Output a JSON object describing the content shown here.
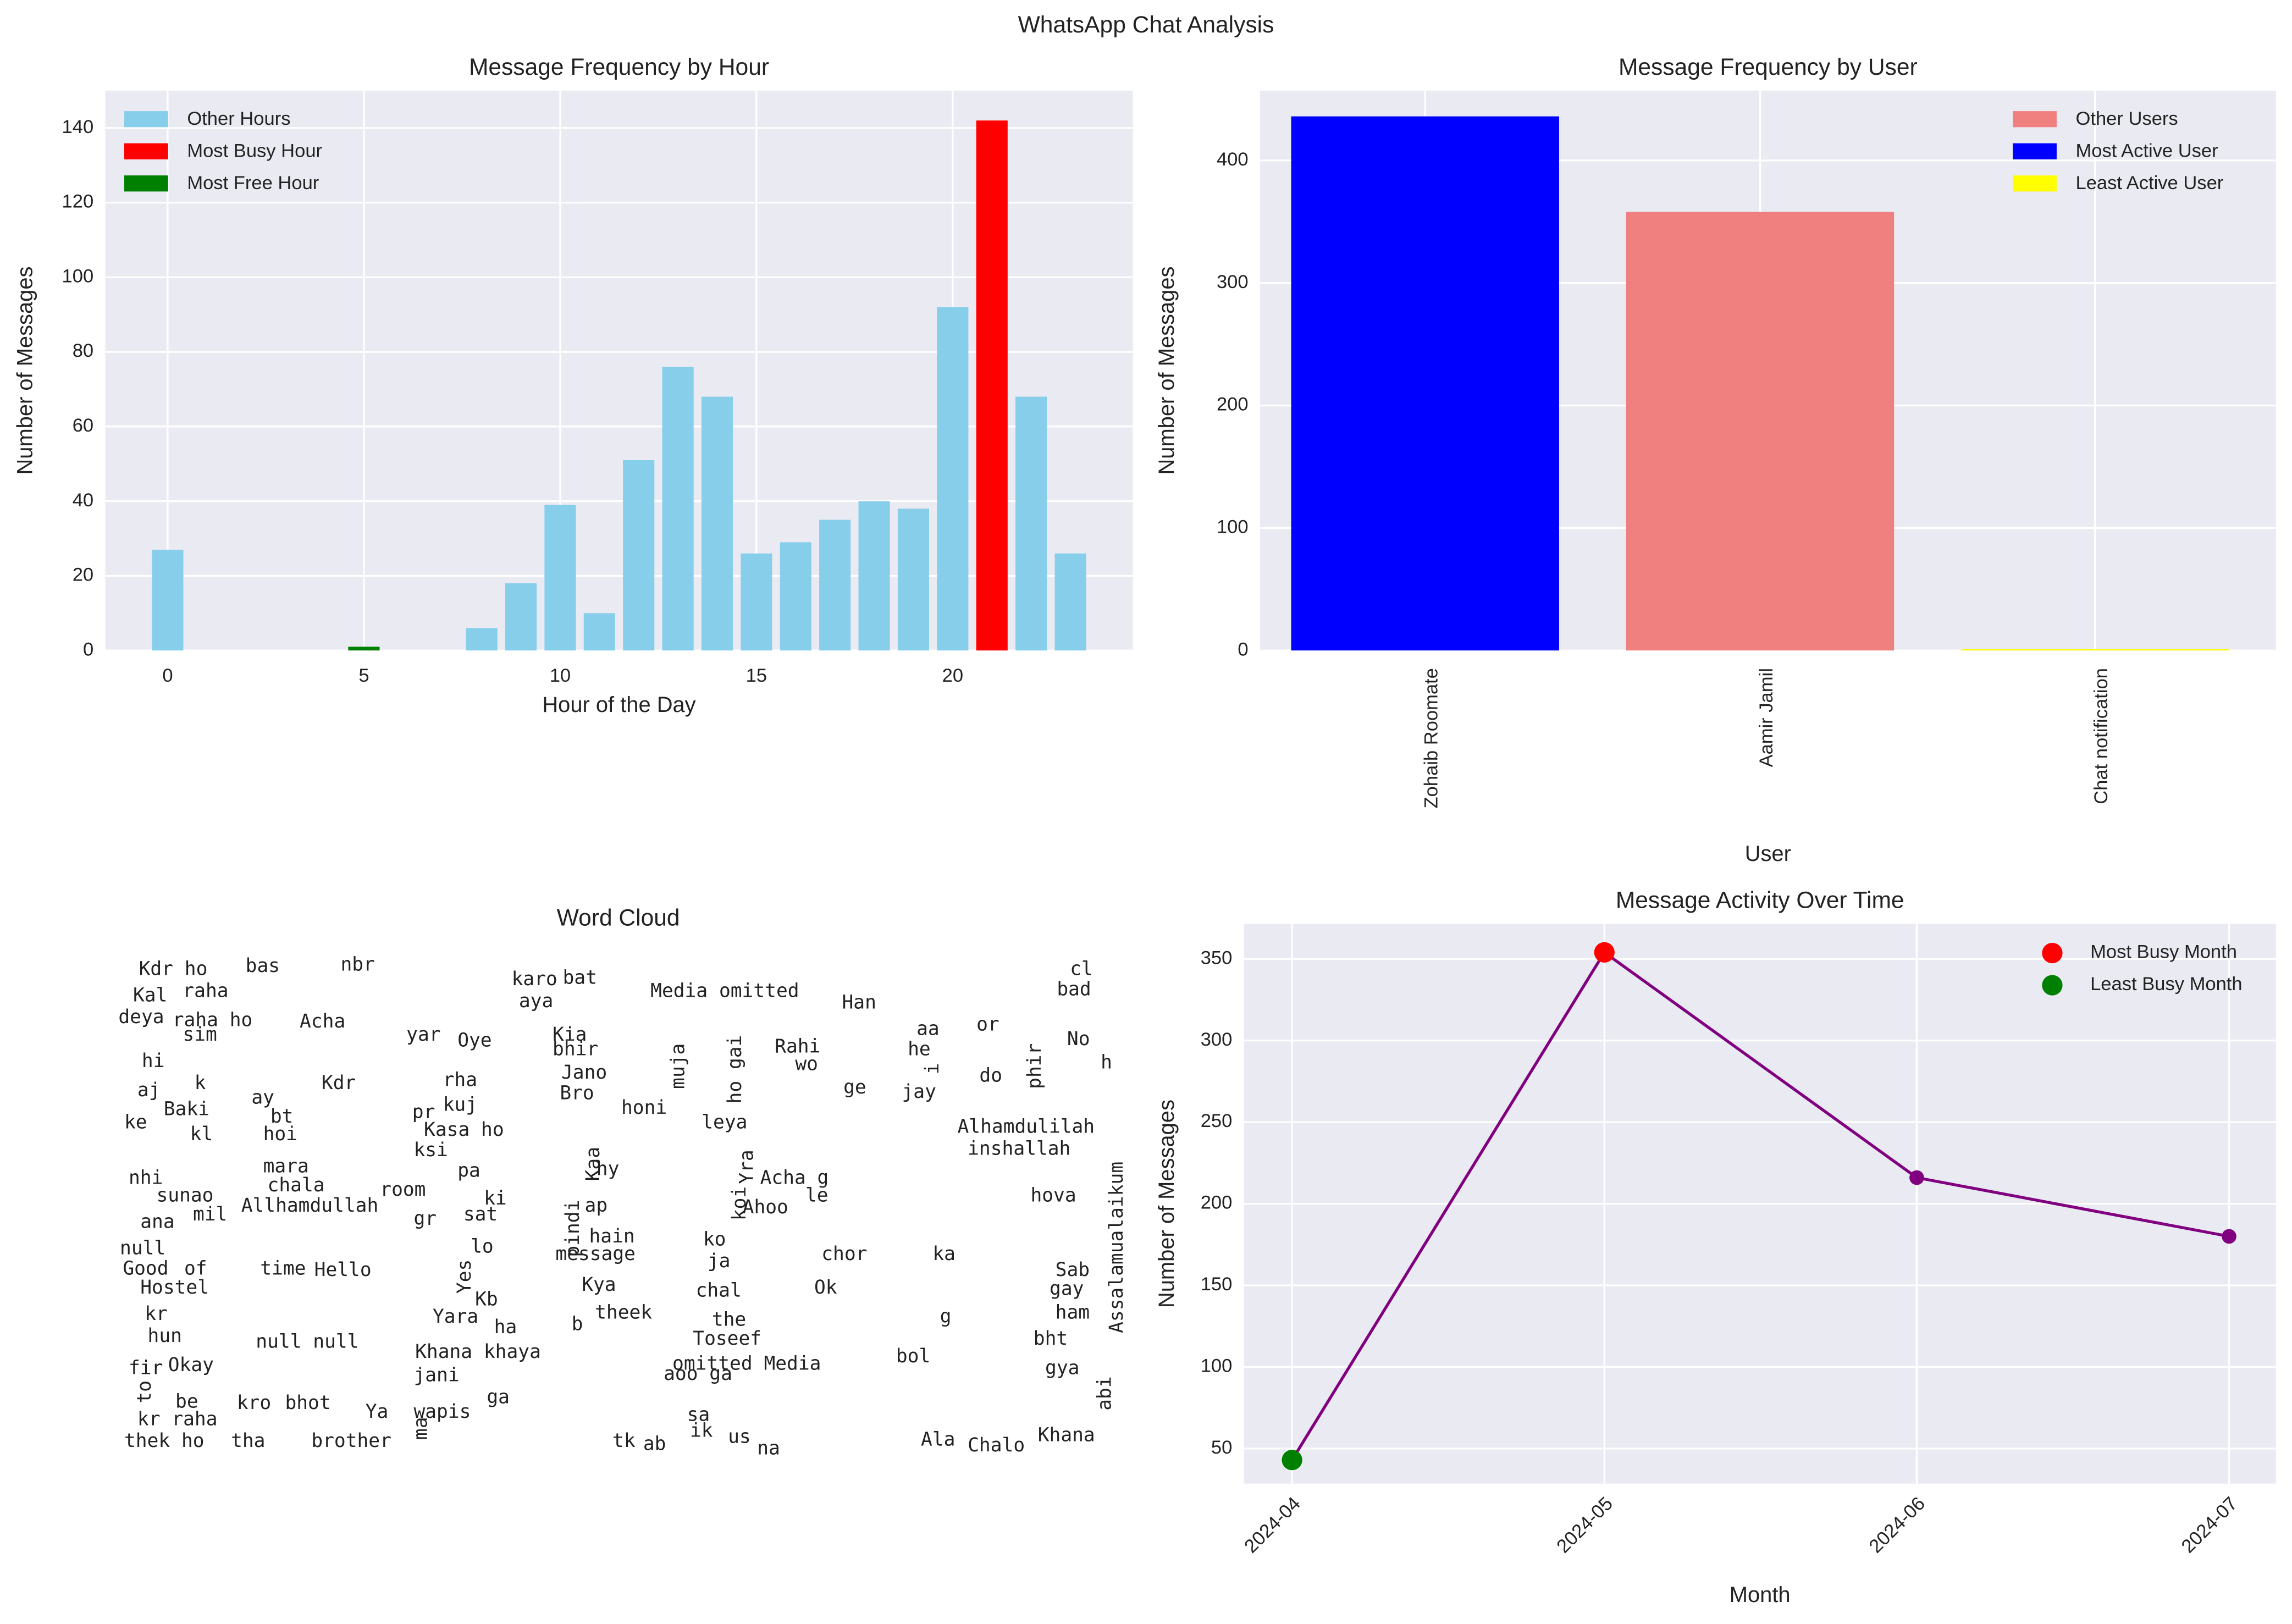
{
  "title": "WhatsApp Chat Analysis",
  "chart_data": [
    {
      "type": "bar",
      "title": "Message Frequency by Hour",
      "xlabel": "Hour of the Day",
      "ylabel": "Number of Messages",
      "xlim": [
        -1.59,
        24.59
      ],
      "xticks": [
        0,
        5,
        10,
        15,
        20
      ],
      "ylim": [
        0,
        150
      ],
      "yticks": [
        0,
        20,
        40,
        60,
        80,
        100,
        120,
        140
      ],
      "grid": true,
      "legend": "upper left",
      "series": [
        {
          "name": "Other Hours",
          "color": "#87ceeb",
          "x": [
            0,
            8,
            9,
            10,
            11,
            12,
            13,
            14,
            15,
            16,
            17,
            18,
            19,
            20,
            22,
            23
          ],
          "values": [
            27,
            6,
            18,
            39,
            10,
            51,
            76,
            68,
            26,
            29,
            35,
            40,
            38,
            92,
            68,
            26
          ]
        },
        {
          "name": "Most Busy Hour",
          "color": "#ff0000",
          "x": [
            21
          ],
          "values": [
            142
          ]
        },
        {
          "name": "Most Free Hour",
          "color": "#008000",
          "x": [
            5
          ],
          "values": [
            1
          ]
        }
      ]
    },
    {
      "type": "bar",
      "title": "Message Frequency by User",
      "xlabel": "User",
      "ylabel": "Number of Messages",
      "categories": [
        "Zohaib Roomate",
        "Aamir Jamil",
        "Chat notification"
      ],
      "ylim": [
        0,
        457
      ],
      "yticks": [
        0,
        100,
        200,
        300,
        400
      ],
      "grid": true,
      "legend": "upper right",
      "series": [
        {
          "name": "Other Users",
          "color": "#f08080",
          "values": [
            null,
            358,
            null
          ]
        },
        {
          "name": "Most Active User",
          "color": "#0000ff",
          "values": [
            436,
            null,
            null
          ]
        },
        {
          "name": "Least Active User",
          "color": "#ffff00",
          "values": [
            null,
            null,
            1
          ]
        }
      ]
    },
    {
      "type": "wordcloud",
      "title": "Word Cloud",
      "words": [
        "ha",
        "ma",
        "honi",
        "g",
        "ka",
        "ga",
        "na",
        "Acha",
        "Media omitted",
        "sa",
        "ab",
        "us",
        "omitted Media",
        "null null",
        "Hello",
        "brother",
        "tha",
        "Ya",
        "wapis",
        "Yara",
        "Yes",
        "gr",
        "room",
        "pa",
        "nhi",
        "hi",
        "raha",
        "raha ho",
        "Kdr ho",
        "Kal",
        "deya",
        "sim",
        "aj",
        "k",
        "ay",
        "ke",
        "Baki",
        "kl",
        "bt",
        "hoi",
        "mara",
        "chala",
        "sunao",
        "ana",
        "mil",
        "Allhamdullah",
        "null",
        "Good",
        "of",
        "time",
        "Hostel",
        "kr",
        "hun",
        "Okay",
        "to",
        "fir",
        "be",
        "kro",
        "bhot",
        "jani",
        "Khana khaya",
        "kr raha",
        "thek ho",
        "Kdr",
        "yar",
        "Oye",
        "rha",
        "pr",
        "kuj",
        "Kasa ho",
        "ksi",
        "ki",
        "sat",
        "lo",
        "Kb",
        "karo",
        "aya",
        "bat",
        "Kia",
        "bhir",
        "Jano",
        "Bro",
        "ap",
        "hy",
        "Kaa",
        "pindi",
        "message",
        "hain",
        "Kya",
        "b",
        "theek",
        "aoo ga",
        "tk",
        "ik",
        "muja",
        "ho gai",
        "Rahi",
        "wo",
        "leya",
        "koi",
        "Acha g",
        "Yra",
        "Ahoo",
        "le",
        "ko",
        "ja",
        "chal",
        "the",
        "Toseef",
        "chor",
        "Ok",
        "Han",
        "ge",
        "aa",
        "he",
        "i",
        "jay",
        "or",
        "do",
        "phir",
        "No",
        "h",
        "cl",
        "bad",
        "Alhamdulilah",
        "inshallah",
        "Assalamualaikum",
        "hova",
        "Sab",
        "gay",
        "ham",
        "bht",
        "gya",
        "abi",
        "Khana",
        "Chalo",
        "Ala",
        "bol",
        "bas",
        "nbr"
      ]
    },
    {
      "type": "line",
      "title": "Message Activity Over Time",
      "xlabel": "Month",
      "ylabel": "Number of Messages",
      "categories": [
        "2024-04",
        "2024-05",
        "2024-06",
        "2024-07"
      ],
      "ylim": [
        28.5,
        371.5
      ],
      "yticks": [
        50,
        100,
        150,
        200,
        250,
        300,
        350
      ],
      "grid": true,
      "legend": "upper right",
      "series": [
        {
          "color": "#800080",
          "values": [
            43,
            354,
            216,
            180
          ]
        },
        {
          "name": "Most Busy Month",
          "color": "#ff0000",
          "marker_only": true,
          "values": [
            null,
            354,
            null,
            null
          ]
        },
        {
          "name": "Least Busy Month",
          "color": "#008000",
          "marker_only": true,
          "values": [
            43,
            null,
            null,
            null
          ]
        }
      ]
    }
  ]
}
